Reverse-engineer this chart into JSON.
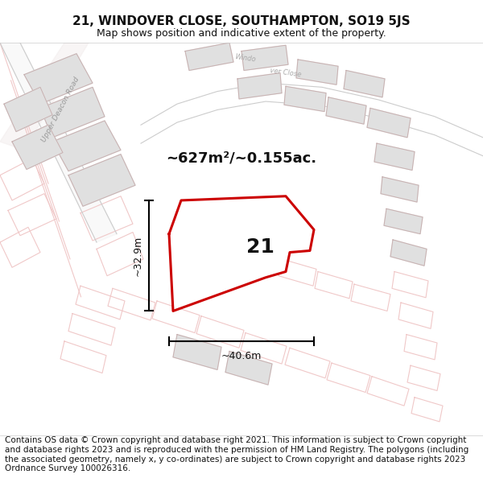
{
  "title": "21, WINDOVER CLOSE, SOUTHAMPTON, SO19 5JS",
  "subtitle": "Map shows position and indicative extent of the property.",
  "area_text": "~627m²/~0.155ac.",
  "width_label": "~40.6m",
  "height_label": "~32.9m",
  "label_number": "21",
  "footer": "Contains OS data © Crown copyright and database right 2021. This information is subject to Crown copyright and database rights 2023 and is reproduced with the permission of HM Land Registry. The polygons (including the associated geometry, namely x, y co-ordinates) are subject to Crown copyright and database rights 2023 Ordnance Survey 100026316.",
  "map_bg": "#f7f4f4",
  "property_color": "#cc0000",
  "neighbor_fill": "#e0e0e0",
  "neighbor_stroke": "#c8b0b0",
  "road_outline": "#f0c8c8",
  "title_fontsize": 11,
  "subtitle_fontsize": 9,
  "footer_fontsize": 7.5
}
